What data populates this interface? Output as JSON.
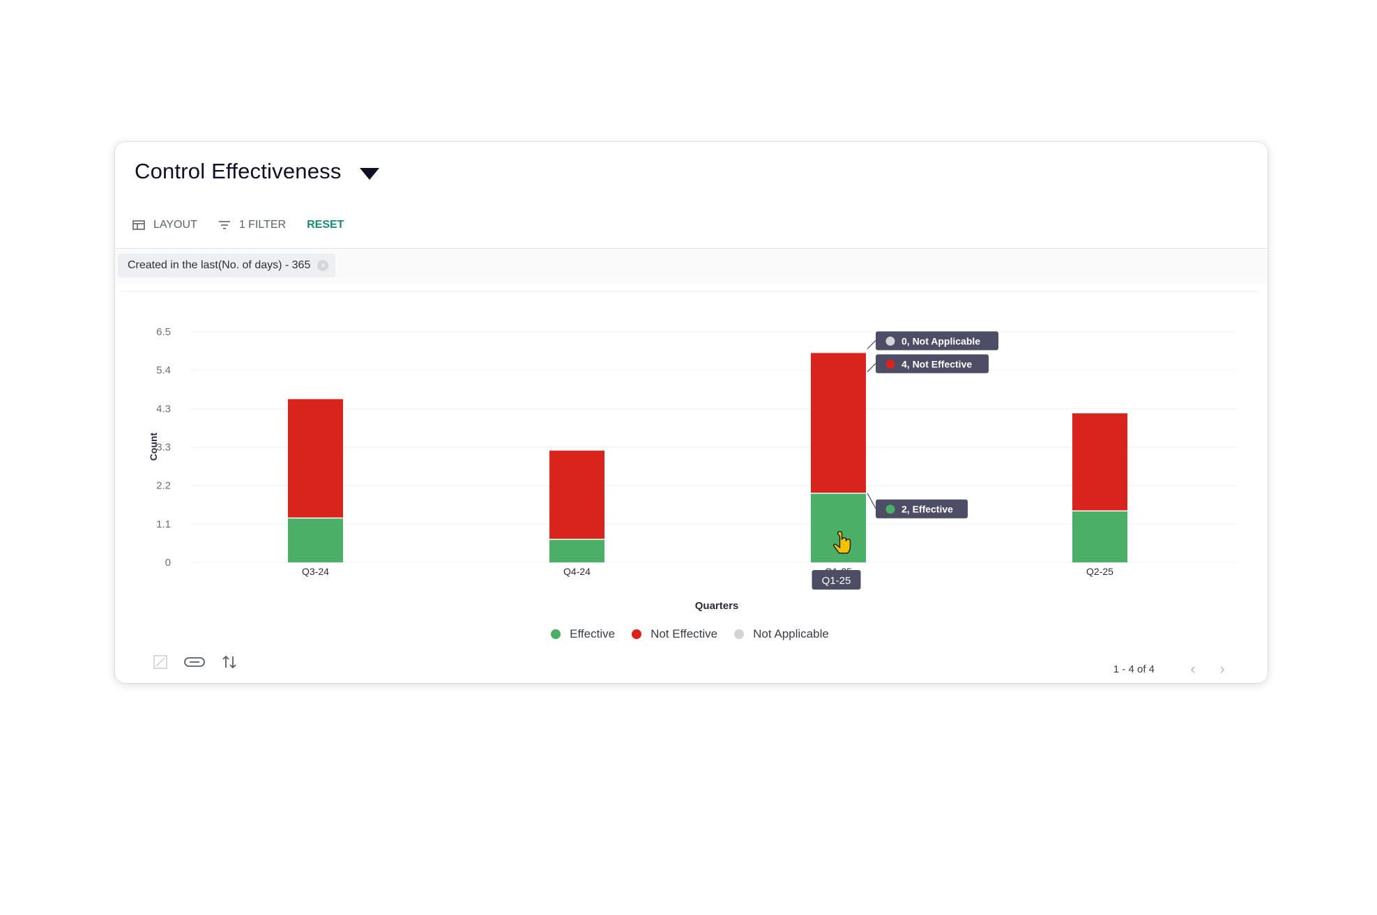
{
  "header": {
    "title": "Control Effectiveness"
  },
  "toolbar": {
    "layout_label": "LAYOUT",
    "filter_label": "1 FILTER",
    "reset_label": "RESET"
  },
  "filter_chip": {
    "label": "Created in the last(No. of days) - 365"
  },
  "colors": {
    "effective": "#4caf68",
    "not_effective": "#d9241e",
    "not_applicable": "#d3d4d8",
    "accent": "#178a7a",
    "tooltip_bg": "#4d4d66"
  },
  "chart_data": {
    "type": "bar",
    "stacked": true,
    "categories": [
      "Q3-24",
      "Q4-24",
      "Q1-25",
      "Q2-25"
    ],
    "series": [
      {
        "name": "Effective",
        "values": [
          1.25,
          0.65,
          1.95,
          1.45
        ],
        "color": "#4caf68"
      },
      {
        "name": "Not Effective",
        "values": [
          3.35,
          2.5,
          3.95,
          2.75
        ],
        "color": "#d9241e"
      },
      {
        "name": "Not Applicable",
        "values": [
          0,
          0,
          0,
          0
        ],
        "color": "#d3d4d8"
      }
    ],
    "xlabel": "Quarters",
    "ylabel": "Count",
    "yticks": [
      "0",
      "1.1",
      "2.2",
      "3.3",
      "4.3",
      "5.4",
      "6.5"
    ],
    "ylim": [
      0,
      6.5
    ],
    "legend_position": "bottom",
    "hover": {
      "category": "Q1-25",
      "labels": [
        "0, Not Applicable",
        "4, Not Effective",
        "2, Effective"
      ]
    }
  },
  "pagination": {
    "text": "1 - 4 of 4",
    "prev": "‹",
    "next": "›"
  }
}
